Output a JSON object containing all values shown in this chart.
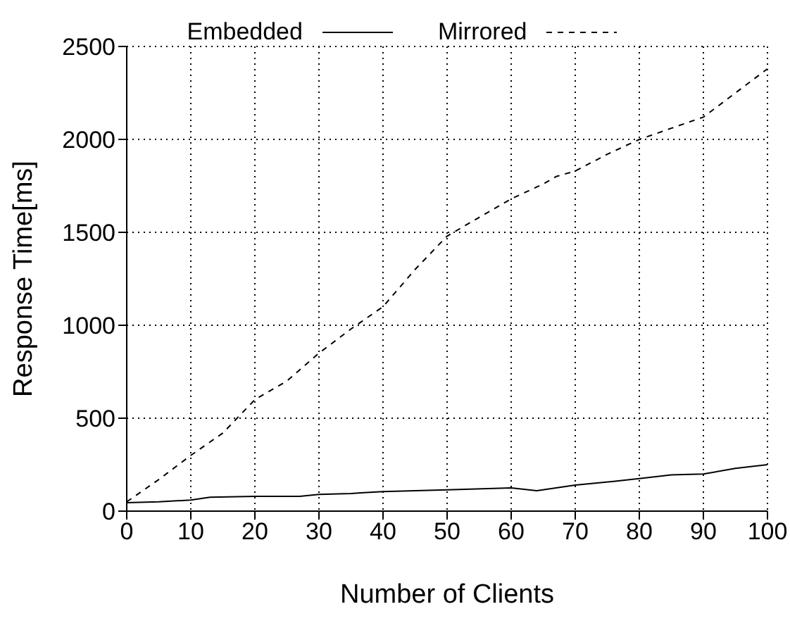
{
  "chart_data": {
    "type": "line",
    "xlabel": "Number of Clients",
    "ylabel": "Response Time[ms]",
    "xlim": [
      0,
      100
    ],
    "ylim": [
      0,
      2500
    ],
    "xticks": [
      0,
      10,
      20,
      30,
      40,
      50,
      60,
      70,
      80,
      90,
      100
    ],
    "yticks": [
      0,
      500,
      1000,
      1500,
      2000,
      2500
    ],
    "grid": true,
    "legend": "top",
    "marker": "none",
    "series": [
      {
        "name": "Embedded",
        "color": "#000000",
        "line_style": "solid",
        "x": [
          0,
          5,
          10,
          13,
          20,
          27,
          30,
          35,
          40,
          50,
          60,
          64,
          70,
          76,
          80,
          85,
          90,
          95,
          100
        ],
        "values": [
          45,
          50,
          60,
          75,
          80,
          80,
          90,
          95,
          105,
          115,
          125,
          110,
          140,
          160,
          175,
          195,
          200,
          230,
          250
        ]
      },
      {
        "name": "Mirrored",
        "color": "#000000",
        "line_style": "dashed",
        "x": [
          0,
          5,
          10,
          15,
          20,
          25,
          30,
          35,
          40,
          45,
          50,
          55,
          60,
          65,
          67,
          70,
          75,
          80,
          85,
          90,
          95,
          100
        ],
        "values": [
          50,
          170,
          300,
          420,
          600,
          700,
          850,
          980,
          1100,
          1300,
          1480,
          1580,
          1680,
          1760,
          1800,
          1830,
          1920,
          2000,
          2060,
          2120,
          2250,
          2380
        ]
      }
    ]
  }
}
